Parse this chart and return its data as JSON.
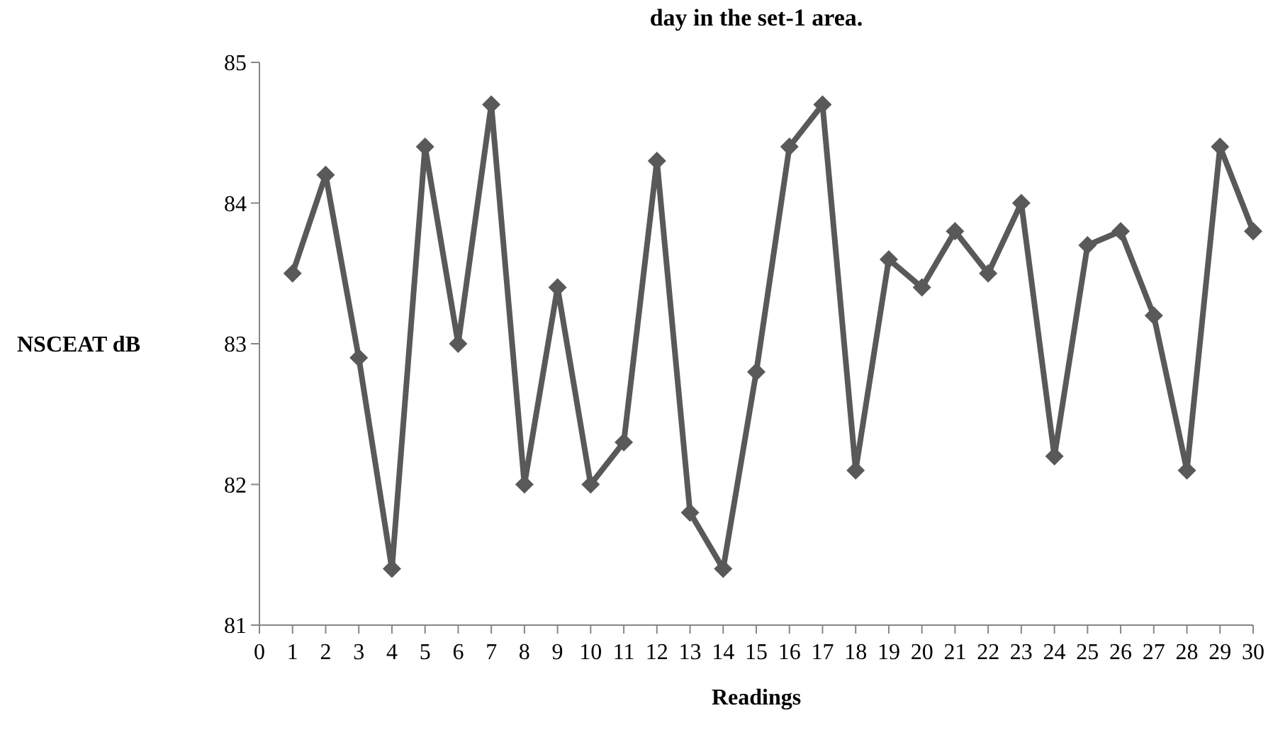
{
  "chart_data": {
    "type": "line",
    "title": "day in the set-1 area.",
    "xlabel": "Readings",
    "ylabel": "NSCEAT dB",
    "x": [
      1,
      2,
      3,
      4,
      5,
      6,
      7,
      8,
      9,
      10,
      11,
      12,
      13,
      14,
      15,
      16,
      17,
      18,
      19,
      20,
      21,
      22,
      23,
      24,
      25,
      26,
      27,
      28,
      29,
      30
    ],
    "series": [
      {
        "color": "#595959",
        "values": [
          83.5,
          84.2,
          82.9,
          81.4,
          84.4,
          83.0,
          84.7,
          82.0,
          83.4,
          82.0,
          82.3,
          84.3,
          81.8,
          81.4,
          82.8,
          84.4,
          84.7,
          82.1,
          83.6,
          83.4,
          83.8,
          83.5,
          84.0,
          82.2,
          83.7,
          83.8,
          83.2,
          82.1,
          84.4,
          83.8
        ]
      }
    ],
    "xlim": [
      0,
      30
    ],
    "xticks": [
      0,
      1,
      2,
      3,
      4,
      5,
      6,
      7,
      8,
      9,
      10,
      11,
      12,
      13,
      14,
      15,
      16,
      17,
      18,
      19,
      20,
      21,
      22,
      23,
      24,
      25,
      26,
      27,
      28,
      29,
      30
    ],
    "ylim": [
      81,
      85
    ],
    "yticks": [
      81,
      82,
      83,
      84,
      85
    ],
    "grid": false,
    "marker": "diamond",
    "line_style": "solid"
  }
}
